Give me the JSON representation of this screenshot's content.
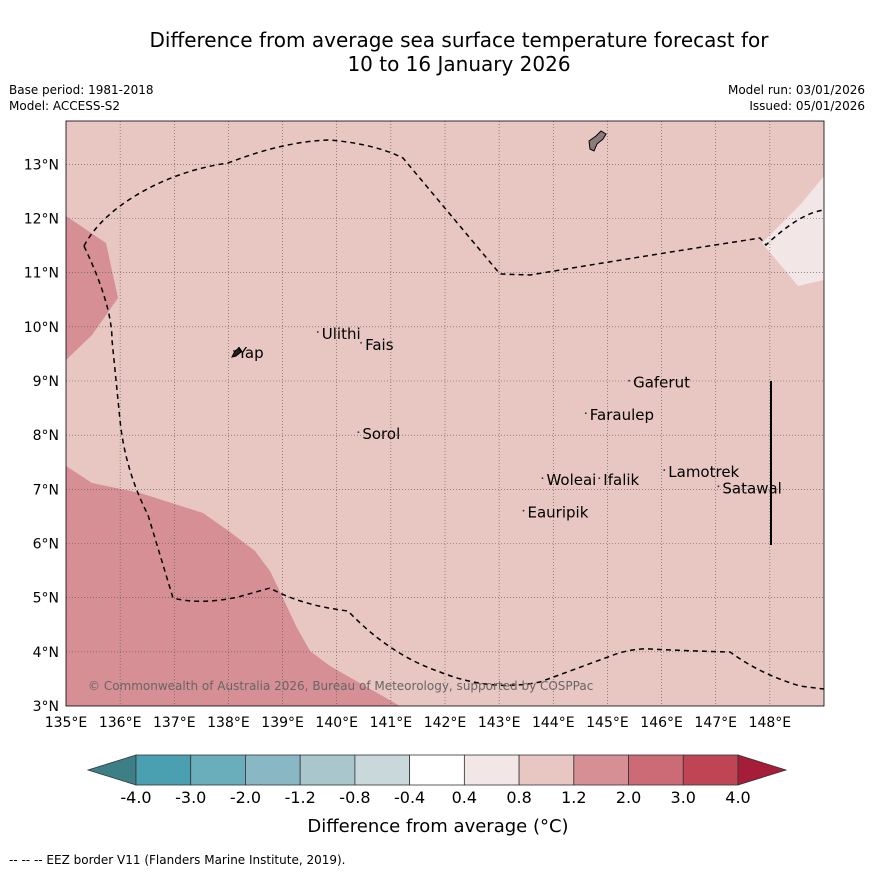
{
  "title": {
    "line1": "Difference from average sea surface temperature forecast for",
    "line2": "10 to 16 January 2026"
  },
  "meta": {
    "base_period": "Base period: 1981-2018",
    "model": "Model: ACCESS-S2",
    "model_run": "Model run: 03/01/2026",
    "issued": "Issued: 05/01/2026"
  },
  "map": {
    "lon_ticks": [
      "135°E",
      "136°E",
      "137°E",
      "138°E",
      "139°E",
      "140°E",
      "141°E",
      "142°E",
      "143°E",
      "144°E",
      "145°E",
      "146°E",
      "147°E",
      "148°E"
    ],
    "lat_ticks": [
      "3°N",
      "4°N",
      "5°N",
      "6°N",
      "7°N",
      "8°N",
      "9°N",
      "10°N",
      "11°N",
      "12°N",
      "13°N"
    ],
    "places": [
      {
        "name": "Yap",
        "lon": 138.1,
        "lat": 9.5
      },
      {
        "name": "Ulithi",
        "lon": 139.65,
        "lat": 9.85
      },
      {
        "name": "Fais",
        "lon": 140.45,
        "lat": 9.65
      },
      {
        "name": "Gaferut",
        "lon": 145.4,
        "lat": 8.95
      },
      {
        "name": "Faraulep",
        "lon": 144.6,
        "lat": 8.35
      },
      {
        "name": "Sorol",
        "lon": 140.4,
        "lat": 8.0
      },
      {
        "name": "Woleai",
        "lon": 143.8,
        "lat": 7.15
      },
      {
        "name": "Ifalik",
        "lon": 144.85,
        "lat": 7.15
      },
      {
        "name": "Lamotrek",
        "lon": 146.05,
        "lat": 7.3
      },
      {
        "name": "Satawal",
        "lon": 147.05,
        "lat": 7.0
      },
      {
        "name": "Eauripik",
        "lon": 143.45,
        "lat": 6.55
      }
    ],
    "copyright": "© Commonwealth of Australia 2026, Bureau of Meteorology, supported by COSPPac",
    "colors": {
      "background": "#e8c6c2",
      "warm_1_2": "#d58f95",
      "cool_0_4": "#f3e6e6",
      "land": "#8a7b7b"
    }
  },
  "colorbar": {
    "labels": [
      "-4.0",
      "-3.0",
      "-2.0",
      "-1.2",
      "-0.8",
      "-0.4",
      "0.4",
      "0.8",
      "1.2",
      "2.0",
      "3.0",
      "4.0"
    ],
    "colors": [
      "#3d7f86",
      "#4aa0b0",
      "#6aadbb",
      "#8ab7c4",
      "#a9c6cc",
      "#c8d8db",
      "#ffffff",
      "#f3e6e6",
      "#e8c6c2",
      "#d58f95",
      "#cc6b75",
      "#bf4555",
      "#a51d38"
    ],
    "label": "Difference from average (°C)"
  },
  "footer": "--  --  -- EEZ border V11 (Flanders Marine Institute, 2019)."
}
